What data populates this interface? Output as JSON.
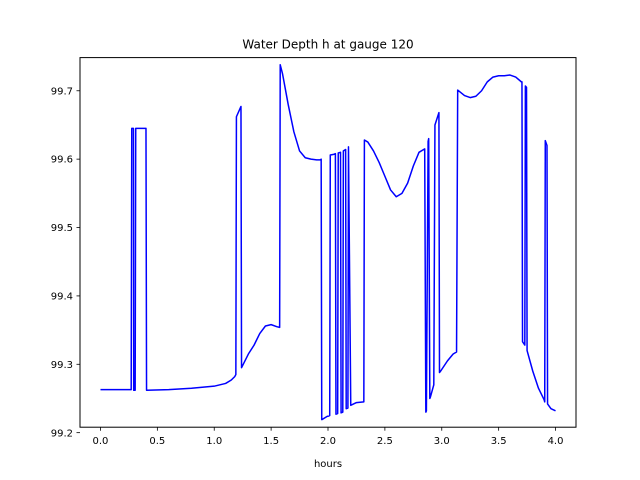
{
  "chart_data": {
    "type": "line",
    "title": "Water Depth h at gauge 120",
    "xlabel": "hours",
    "ylabel": "",
    "xlim": [
      -0.18,
      4.18
    ],
    "ylim": [
      99.208,
      99.7485
    ],
    "xticks": [
      0.0,
      0.5,
      1.0,
      1.5,
      2.0,
      2.5,
      3.0,
      3.5,
      4.0
    ],
    "xtick_labels": [
      "0.0",
      "0.5",
      "1.0",
      "1.5",
      "2.0",
      "2.5",
      "3.0",
      "3.5",
      "4.0"
    ],
    "yticks": [
      99.2,
      99.3,
      99.4,
      99.5,
      99.6,
      99.7
    ],
    "ytick_labels": [
      "99.2",
      "99.3",
      "99.4",
      "99.5",
      "99.6",
      "99.7"
    ],
    "grid": false,
    "color": "#0000ff",
    "series": [
      {
        "x": [
          0.0,
          0.27,
          0.275,
          0.29,
          0.292,
          0.305,
          0.31,
          0.4,
          0.405,
          0.6,
          0.8,
          1.0,
          1.1,
          1.15,
          1.18,
          1.19,
          1.195,
          1.235,
          1.24,
          1.3,
          1.35,
          1.4,
          1.45,
          1.5,
          1.55,
          1.575,
          1.58,
          1.6,
          1.65,
          1.7,
          1.75,
          1.8,
          1.85,
          1.9,
          1.935,
          1.94,
          1.945,
          1.995,
          2.0,
          2.015,
          2.02,
          2.05,
          2.065,
          2.07,
          2.085,
          2.09,
          2.11,
          2.115,
          2.13,
          2.135,
          2.155,
          2.16,
          2.175,
          2.18,
          2.2,
          2.25,
          2.315,
          2.32,
          2.35,
          2.4,
          2.45,
          2.5,
          2.55,
          2.6,
          2.65,
          2.7,
          2.75,
          2.8,
          2.85,
          2.86,
          2.865,
          2.88,
          2.885,
          2.895,
          2.9,
          2.93,
          2.94,
          2.975,
          2.98,
          2.99,
          3.05,
          3.1,
          3.13,
          3.14,
          3.2,
          3.25,
          3.3,
          3.35,
          3.4,
          3.45,
          3.5,
          3.55,
          3.6,
          3.65,
          3.7,
          3.705,
          3.71,
          3.73,
          3.735,
          3.745,
          3.75,
          3.8,
          3.85,
          3.9,
          3.905,
          3.91,
          3.925,
          3.93,
          3.96,
          4.0
        ],
        "y": [
          99.263,
          99.263,
          99.645,
          99.645,
          99.262,
          99.262,
          99.645,
          99.645,
          99.262,
          99.263,
          99.265,
          99.268,
          99.272,
          99.277,
          99.282,
          99.285,
          99.662,
          99.677,
          99.295,
          99.315,
          99.328,
          99.345,
          99.356,
          99.358,
          99.355,
          99.354,
          99.738,
          99.725,
          99.68,
          99.64,
          99.612,
          99.602,
          99.6,
          99.599,
          99.599,
          99.6,
          99.219,
          99.224,
          99.224,
          99.225,
          99.606,
          99.607,
          99.608,
          99.227,
          99.228,
          99.609,
          99.61,
          99.229,
          99.23,
          99.612,
          99.614,
          99.235,
          99.236,
          99.618,
          99.24,
          99.244,
          99.245,
          99.628,
          99.625,
          99.612,
          99.595,
          99.575,
          99.555,
          99.545,
          99.55,
          99.565,
          99.59,
          99.61,
          99.615,
          99.23,
          99.232,
          99.626,
          99.63,
          99.25,
          99.252,
          99.27,
          99.65,
          99.668,
          99.288,
          99.29,
          99.305,
          99.315,
          99.318,
          99.701,
          99.693,
          99.69,
          99.692,
          99.7,
          99.713,
          99.72,
          99.722,
          99.722,
          99.723,
          99.72,
          99.713,
          99.713,
          99.333,
          99.328,
          99.707,
          99.705,
          99.32,
          99.29,
          99.265,
          99.248,
          99.245,
          99.627,
          99.62,
          99.242,
          99.235,
          99.232
        ]
      }
    ]
  }
}
